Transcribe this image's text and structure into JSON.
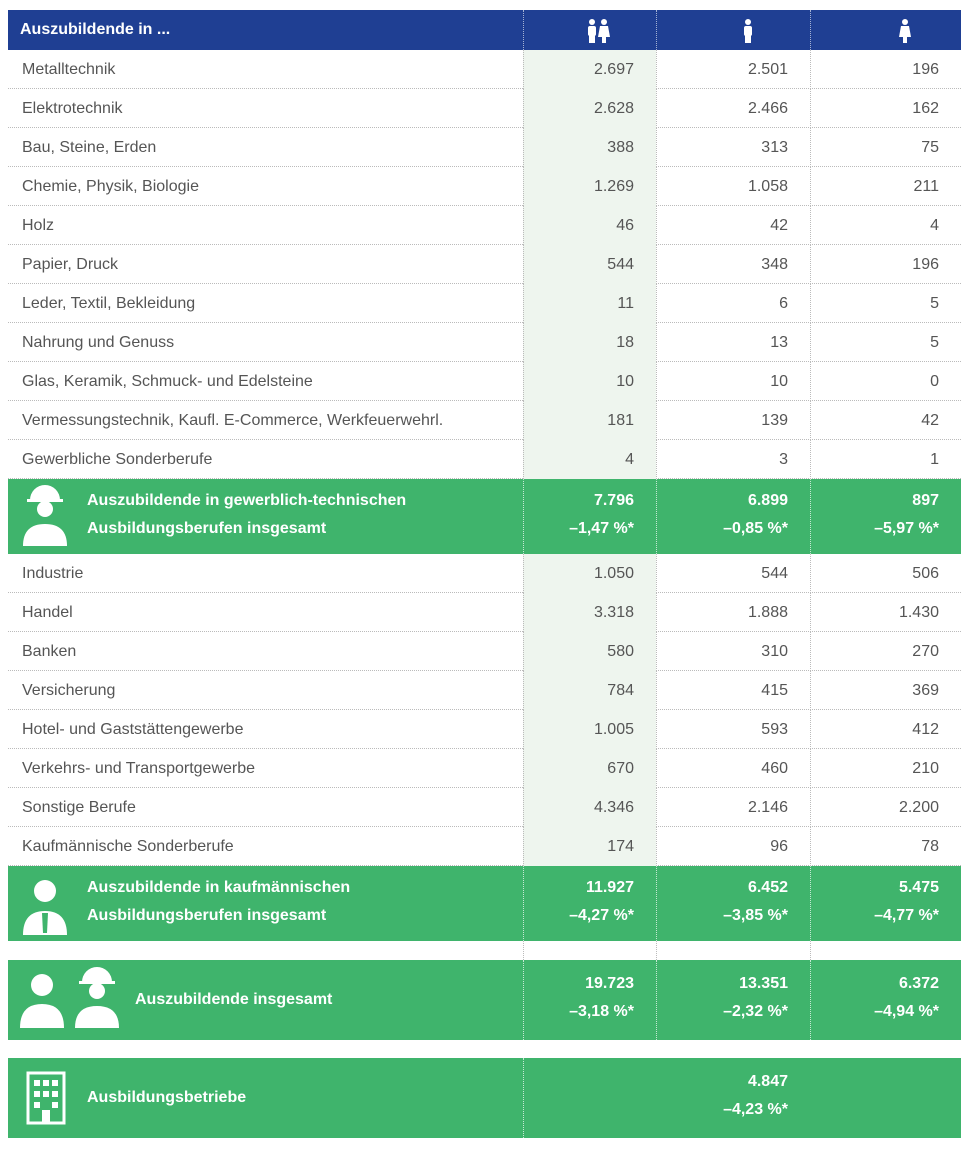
{
  "header": {
    "label": "Auszubildende in ..."
  },
  "sections": [
    {
      "rows": [
        {
          "label": "Metalltechnik",
          "values": [
            "2.697",
            "2.501",
            "196"
          ]
        },
        {
          "label": "Elektrotechnik",
          "values": [
            "2.628",
            "2.466",
            "162"
          ]
        },
        {
          "label": "Bau, Steine, Erden",
          "values": [
            "388",
            "313",
            "75"
          ]
        },
        {
          "label": "Chemie, Physik, Biologie",
          "values": [
            "1.269",
            "1.058",
            "211"
          ]
        },
        {
          "label": "Holz",
          "values": [
            "46",
            "42",
            "4"
          ]
        },
        {
          "label": "Papier, Druck",
          "values": [
            "544",
            "348",
            "196"
          ]
        },
        {
          "label": "Leder, Textil, Bekleidung",
          "values": [
            "11",
            "6",
            "5"
          ]
        },
        {
          "label": "Nahrung und Genuss",
          "values": [
            "18",
            "13",
            "5"
          ]
        },
        {
          "label": "Glas, Keramik, Schmuck- und Edelsteine",
          "values": [
            "10",
            "10",
            "0"
          ]
        },
        {
          "label": "Vermessungstechnik, Kaufl. E-Commerce, Werkfeuerwehrl.",
          "values": [
            "181",
            "139",
            "42"
          ]
        },
        {
          "label": "Gewerbliche Sonderberufe",
          "values": [
            "4",
            "3",
            "1"
          ]
        }
      ],
      "total": {
        "label": [
          "Auszubildende in gewerblich-technischen",
          "Ausbildungsberufen insgesamt"
        ],
        "values": [
          "7.796",
          "6.899",
          "897"
        ],
        "changes": [
          "–1,47 %*",
          "–0,85 %*",
          "–5,97 %*"
        ]
      }
    },
    {
      "rows": [
        {
          "label": "Industrie",
          "values": [
            "1.050",
            "544",
            "506"
          ]
        },
        {
          "label": "Handel",
          "values": [
            "3.318",
            "1.888",
            "1.430"
          ]
        },
        {
          "label": "Banken",
          "values": [
            "580",
            "310",
            "270"
          ]
        },
        {
          "label": "Versicherung",
          "values": [
            "784",
            "415",
            "369"
          ]
        },
        {
          "label": "Hotel- und Gaststättengewerbe",
          "values": [
            "1.005",
            "593",
            "412"
          ]
        },
        {
          "label": "Verkehrs- und Transportgewerbe",
          "values": [
            "670",
            "460",
            "210"
          ]
        },
        {
          "label": "Sonstige Berufe",
          "values": [
            "4.346",
            "2.146",
            "2.200"
          ]
        },
        {
          "label": "Kaufmännische Sonderberufe",
          "values": [
            "174",
            "96",
            "78"
          ]
        }
      ],
      "total": {
        "label": [
          "Auszubildende in kaufmännischen",
          "Ausbildungsberufen insgesamt"
        ],
        "values": [
          "11.927",
          "6.452",
          "5.475"
        ],
        "changes": [
          "–4,27 %*",
          "–3,85 %*",
          "–4,77 %*"
        ]
      }
    }
  ],
  "grand_total": {
    "label": "Auszubildende insgesamt",
    "values": [
      "19.723",
      "13.351",
      "6.372"
    ],
    "changes": [
      "–3,18 %*",
      "–2,32 %*",
      "–4,94 %*"
    ]
  },
  "betriebe": {
    "label": "Ausbildungsbetriebe",
    "value": "4.847",
    "change": "–4,23 %*"
  }
}
